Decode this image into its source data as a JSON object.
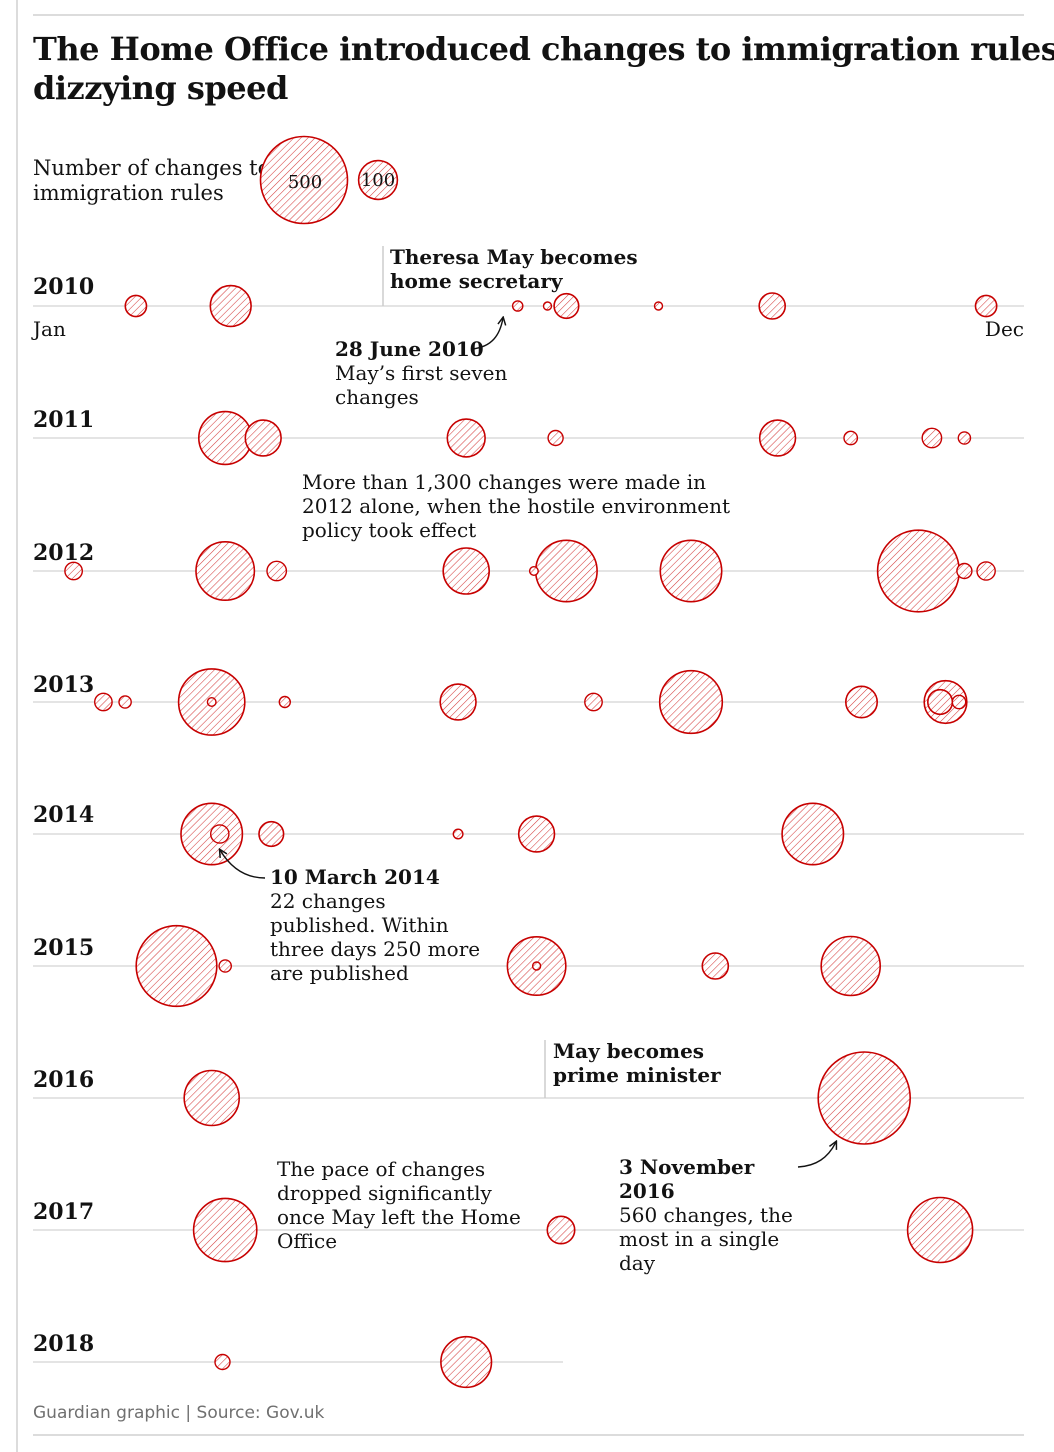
{
  "title_line1": "The Home Office introduced changes to immigration rules at a",
  "title_line2": "dizzying speed",
  "legend": {
    "label_line1": "Number of changes to",
    "label_line2": "immigration rules",
    "sizes": [
      500,
      100
    ]
  },
  "month_labels": {
    "start": "Jan",
    "end": "Dec"
  },
  "colors": {
    "bubble_stroke": "#c70000",
    "hatch": "#c70000",
    "axis": "#dcdcdc",
    "text": "#121212",
    "source": "#707070"
  },
  "annotations": {
    "may_home_sec": [
      "Theresa May becomes",
      "home secretary"
    ],
    "june2010_date": "28 June 2010",
    "june2010_text": [
      "May’s first seven",
      "changes"
    ],
    "y2012_text": [
      "More than 1,300 changes were made in",
      "2012 alone, when the hostile environment",
      "policy took effect"
    ],
    "mar2014_date": "10 March 2014",
    "mar2014_text": [
      "22 changes",
      "published. Within",
      "three days 250 more",
      "are published"
    ],
    "may_pm": [
      "May becomes",
      "prime minister"
    ],
    "nov2016_date": [
      "3 November",
      "2016"
    ],
    "nov2016_text": [
      "560 changes, the",
      "most in a single",
      "day"
    ],
    "pace_text": [
      "The pace of changes",
      "dropped significantly",
      "once May left the Home",
      "Office"
    ]
  },
  "source": "Guardian graphic | Source: Gov.uk",
  "chart_data": {
    "type": "bubble-timeline",
    "title": "The Home Office introduced changes to immigration rules at a dizzying speed",
    "size_legend": "Number of changes to immigration rules",
    "x": "day of year (Jan to Dec)",
    "years": [
      {
        "year": "2010",
        "events": [
          {
            "day": 38,
            "changes": 30
          },
          {
            "day": 73,
            "changes": 110
          },
          {
            "day": 179,
            "changes": 7
          },
          {
            "day": 190,
            "changes": 4
          },
          {
            "day": 197,
            "changes": 40
          },
          {
            "day": 231,
            "changes": 4
          },
          {
            "day": 273,
            "changes": 45
          },
          {
            "day": 352,
            "changes": 30
          }
        ]
      },
      {
        "year": "2011",
        "events": [
          {
            "day": 71,
            "changes": 185
          },
          {
            "day": 85,
            "changes": 85
          },
          {
            "day": 160,
            "changes": 95
          },
          {
            "day": 193,
            "changes": 15
          },
          {
            "day": 275,
            "changes": 85
          },
          {
            "day": 302,
            "changes": 12
          },
          {
            "day": 332,
            "changes": 25
          },
          {
            "day": 344,
            "changes": 10
          }
        ]
      },
      {
        "year": "2012",
        "events": [
          {
            "day": 15,
            "changes": 20
          },
          {
            "day": 71,
            "changes": 225
          },
          {
            "day": 90,
            "changes": 25
          },
          {
            "day": 160,
            "changes": 140
          },
          {
            "day": 185,
            "changes": 5
          },
          {
            "day": 197,
            "changes": 250
          },
          {
            "day": 243,
            "changes": 250
          },
          {
            "day": 327,
            "changes": 440
          },
          {
            "day": 344,
            "changes": 15
          },
          {
            "day": 352,
            "changes": 22
          }
        ]
      },
      {
        "year": "2013",
        "events": [
          {
            "day": 26,
            "changes": 20
          },
          {
            "day": 34,
            "changes": 10
          },
          {
            "day": 66,
            "changes": 290
          },
          {
            "day": 66,
            "changes": 5
          },
          {
            "day": 93,
            "changes": 8
          },
          {
            "day": 157,
            "changes": 85
          },
          {
            "day": 207,
            "changes": 20
          },
          {
            "day": 243,
            "changes": 260
          },
          {
            "day": 306,
            "changes": 65
          },
          {
            "day": 337,
            "changes": 120
          },
          {
            "day": 335,
            "changes": 40
          },
          {
            "day": 342,
            "changes": 12
          }
        ]
      },
      {
        "year": "2014",
        "events": [
          {
            "day": 66,
            "changes": 250
          },
          {
            "day": 69,
            "changes": 22
          },
          {
            "day": 88,
            "changes": 40
          },
          {
            "day": 157,
            "changes": 6
          },
          {
            "day": 186,
            "changes": 85
          },
          {
            "day": 288,
            "changes": 250
          }
        ]
      },
      {
        "year": "2015",
        "events": [
          {
            "day": 53,
            "changes": 430
          },
          {
            "day": 71,
            "changes": 10
          },
          {
            "day": 186,
            "changes": 225
          },
          {
            "day": 186,
            "changes": 3
          },
          {
            "day": 252,
            "changes": 45
          },
          {
            "day": 302,
            "changes": 230
          }
        ]
      },
      {
        "year": "2016",
        "events": [
          {
            "day": 66,
            "changes": 200
          },
          {
            "day": 307,
            "changes": 560
          }
        ]
      },
      {
        "year": "2017",
        "events": [
          {
            "day": 71,
            "changes": 265
          },
          {
            "day": 195,
            "changes": 50
          },
          {
            "day": 335,
            "changes": 280
          }
        ]
      },
      {
        "year": "2018",
        "events": [
          {
            "day": 70,
            "changes": 15
          },
          {
            "day": 160,
            "changes": 170
          }
        ]
      }
    ]
  }
}
